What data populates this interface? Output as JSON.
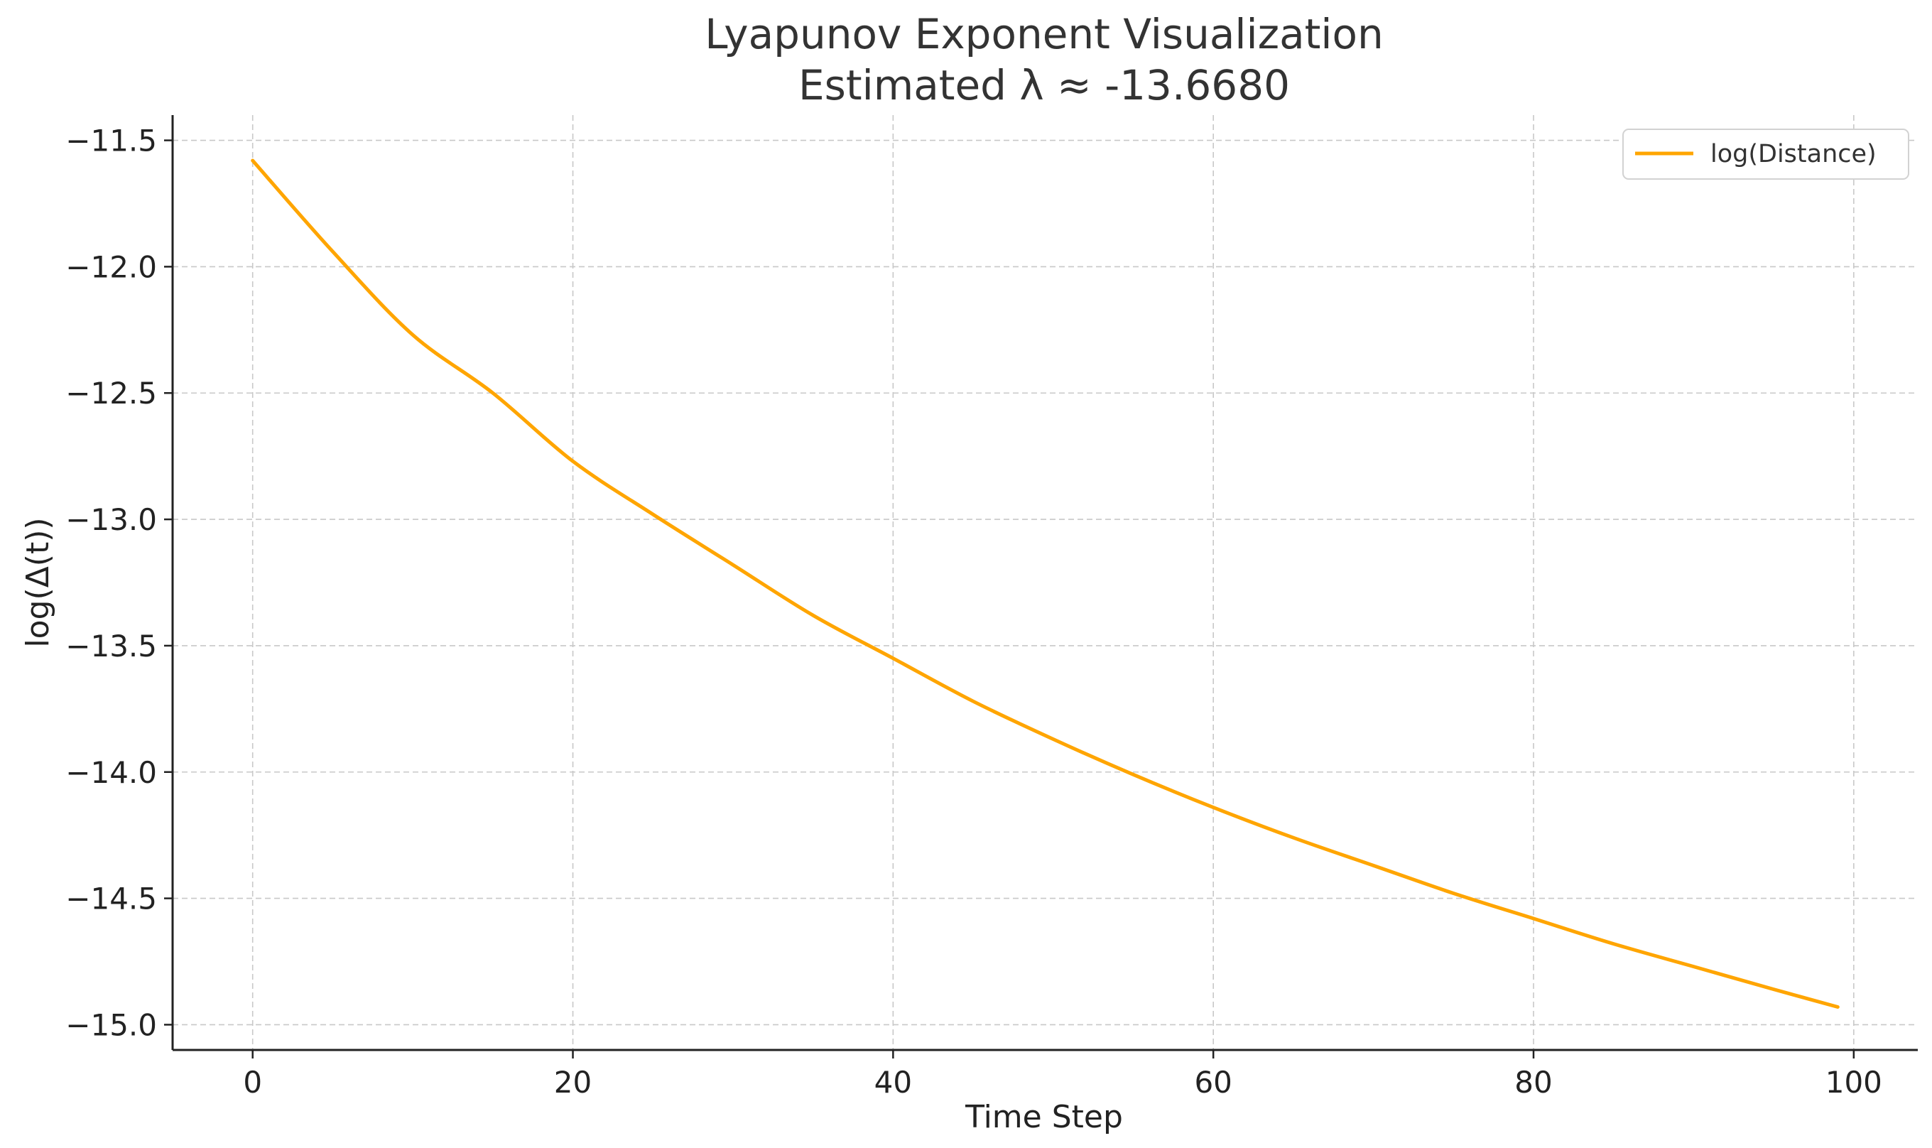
{
  "chart_data": {
    "type": "line",
    "title": "Lyapunov Exponent Visualization",
    "subtitle": "Estimated λ ≈ -13.6680",
    "xlabel": "Time Step",
    "ylabel": "log(Δ(t))",
    "xlim": [
      -5,
      104
    ],
    "ylim": [
      -15.1,
      -11.4
    ],
    "xticks": [
      0,
      20,
      40,
      60,
      80,
      100
    ],
    "xtick_labels": [
      "0",
      "20",
      "40",
      "60",
      "80",
      "100"
    ],
    "yticks": [
      -11.5,
      -12.0,
      -12.5,
      -13.0,
      -13.5,
      -14.0,
      -14.5,
      -15.0
    ],
    "ytick_labels": [
      "−11.5",
      "−12.0",
      "−12.5",
      "−13.0",
      "−13.5",
      "−14.0",
      "−14.5",
      "−15.0"
    ],
    "grid": true,
    "legend_position": "top-right",
    "series": [
      {
        "name": "log(Distance)",
        "color": "#FFA500",
        "x": [
          0,
          5,
          10,
          15,
          20,
          25,
          30,
          35,
          40,
          45,
          50,
          55,
          60,
          65,
          70,
          75,
          80,
          85,
          90,
          95,
          99
        ],
        "y": [
          -11.58,
          -11.94,
          -12.27,
          -12.5,
          -12.77,
          -12.98,
          -13.18,
          -13.38,
          -13.55,
          -13.72,
          -13.87,
          -14.01,
          -14.14,
          -14.26,
          -14.37,
          -14.48,
          -14.58,
          -14.68,
          -14.77,
          -14.86,
          -14.93
        ]
      }
    ]
  }
}
